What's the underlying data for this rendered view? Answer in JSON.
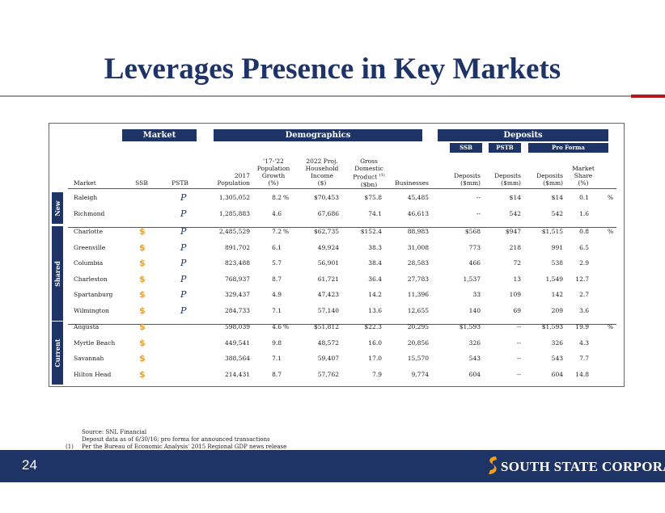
{
  "title": "Leverages Presence in Key Markets",
  "headers": {
    "market": "Market",
    "demographics": "Demographics",
    "deposits": "Deposits",
    "sub_ssb": "SSB",
    "sub_pstb": "PSTB",
    "sub_proforma": "Pro Forma"
  },
  "columns": {
    "market": "Market",
    "ssb": "SSB",
    "pstb": "PSTB",
    "pop": [
      "2017",
      "Population"
    ],
    "growth": [
      "'17-'22",
      "Population",
      "Growth",
      "(%)"
    ],
    "income": [
      "2022 Proj.",
      "Household",
      "Income",
      "($)"
    ],
    "gdp": [
      "Gross",
      "Domestic",
      "Product (1)",
      "($bn)"
    ],
    "businesses": "Businesses",
    "dep_ssb": [
      "Deposits",
      "($mm)"
    ],
    "dep_pstb": [
      "Deposits",
      "($mm)"
    ],
    "dep_pf": [
      "Deposits",
      "($mm)"
    ],
    "share": [
      "Market",
      "Share",
      "(%)"
    ]
  },
  "icons": {
    "ssb": "$",
    "pstb": "P",
    "ssb_color": "#f2a01c",
    "pstb_color": "#1f3466"
  },
  "groups": [
    {
      "label": "New",
      "rows": [
        {
          "market": "Raleigh",
          "ssb": false,
          "pstb": true,
          "pop": "1,305,052",
          "growth": "8.2",
          "gpct": "%",
          "income": "$70,453",
          "gdp": "$75.8",
          "businesses": "45,485",
          "dep_ssb": "--",
          "dep_pstb": "$14",
          "dep_pf": "$14",
          "share": "0.1",
          "spct": "%"
        },
        {
          "market": "Richmond",
          "ssb": false,
          "pstb": true,
          "pop": "1,285,883",
          "growth": "4.6",
          "gpct": "",
          "income": "67,686",
          "gdp": "74.1",
          "businesses": "46,613",
          "dep_ssb": "--",
          "dep_pstb": "542",
          "dep_pf": "542",
          "share": "1.6",
          "spct": ""
        }
      ]
    },
    {
      "label": "Shared",
      "rows": [
        {
          "market": "Charlotte",
          "ssb": true,
          "pstb": true,
          "pop": "2,485,529",
          "growth": "7.2",
          "gpct": "%",
          "income": "$62,735",
          "gdp": "$152.4",
          "businesses": "88,983",
          "dep_ssb": "$568",
          "dep_pstb": "$947",
          "dep_pf": "$1,515",
          "share": "0.8",
          "spct": "%"
        },
        {
          "market": "Greenville",
          "ssb": true,
          "pstb": true,
          "pop": "891,702",
          "growth": "6.1",
          "gpct": "",
          "income": "49,924",
          "gdp": "38.3",
          "businesses": "31,008",
          "dep_ssb": "773",
          "dep_pstb": "218",
          "dep_pf": "991",
          "share": "6.5",
          "spct": ""
        },
        {
          "market": "Columbia",
          "ssb": true,
          "pstb": true,
          "pop": "823,488",
          "growth": "5.7",
          "gpct": "",
          "income": "56,901",
          "gdp": "38.4",
          "businesses": "28,583",
          "dep_ssb": "466",
          "dep_pstb": "72",
          "dep_pf": "538",
          "share": "2.9",
          "spct": ""
        },
        {
          "market": "Charleston",
          "ssb": true,
          "pstb": true,
          "pop": "768,937",
          "growth": "8.7",
          "gpct": "",
          "income": "61,721",
          "gdp": "36.4",
          "businesses": "27,783",
          "dep_ssb": "1,537",
          "dep_pstb": "13",
          "dep_pf": "1,549",
          "share": "12.7",
          "spct": ""
        },
        {
          "market": "Spartanburg",
          "ssb": true,
          "pstb": true,
          "pop": "329,437",
          "growth": "4.9",
          "gpct": "",
          "income": "47,423",
          "gdp": "14.2",
          "businesses": "11,396",
          "dep_ssb": "33",
          "dep_pstb": "109",
          "dep_pf": "142",
          "share": "2.7",
          "spct": ""
        },
        {
          "market": "Wilmington",
          "ssb": true,
          "pstb": true,
          "pop": "284,733",
          "growth": "7.1",
          "gpct": "",
          "income": "57,140",
          "gdp": "13.6",
          "businesses": "12,655",
          "dep_ssb": "140",
          "dep_pstb": "69",
          "dep_pf": "209",
          "share": "3.6",
          "spct": ""
        }
      ]
    },
    {
      "label": "Current",
      "rows": [
        {
          "market": "Augusta",
          "ssb": true,
          "pstb": false,
          "pop": "598,039",
          "growth": "4.6",
          "gpct": "%",
          "income": "$51,812",
          "gdp": "$22.3",
          "businesses": "20,295",
          "dep_ssb": "$1,593",
          "dep_pstb": "--",
          "dep_pf": "$1,593",
          "share": "19.9",
          "spct": "%"
        },
        {
          "market": "Myrtle Beach",
          "ssb": true,
          "pstb": false,
          "pop": "449,541",
          "growth": "9.8",
          "gpct": "",
          "income": "48,572",
          "gdp": "16.0",
          "businesses": "20,856",
          "dep_ssb": "326",
          "dep_pstb": "--",
          "dep_pf": "326",
          "share": "4.3",
          "spct": ""
        },
        {
          "market": "Savannah",
          "ssb": true,
          "pstb": false,
          "pop": "388,564",
          "growth": "7.1",
          "gpct": "",
          "income": "59,407",
          "gdp": "17.0",
          "businesses": "15,570",
          "dep_ssb": "543",
          "dep_pstb": "--",
          "dep_pf": "543",
          "share": "7.7",
          "spct": ""
        },
        {
          "market": "Hilton Head",
          "ssb": true,
          "pstb": false,
          "pop": "214,431",
          "growth": "8.7",
          "gpct": "",
          "income": "57,762",
          "gdp": "7.9",
          "businesses": "9,774",
          "dep_ssb": "604",
          "dep_pstb": "--",
          "dep_pf": "604",
          "share": "14.8",
          "spct": ""
        }
      ]
    }
  ],
  "source": {
    "line1": "Source: SNL Financial",
    "line2": "Deposit data as of 6/30/16; pro forma for announced transactions",
    "note_marker": "(1)",
    "line3": "Per the Bureau of Economic Analysis' 2015 Regional GDP news release"
  },
  "footer": {
    "page_number": "24",
    "company": "SOUTH STATE CORPORATION",
    "brand_color": "#1f3466"
  }
}
